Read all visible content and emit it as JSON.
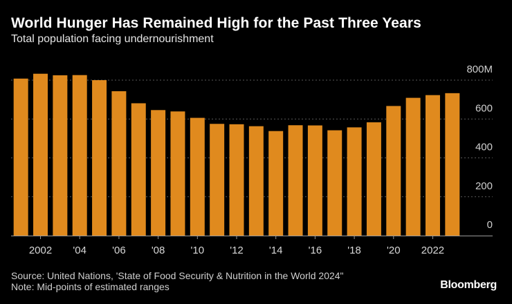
{
  "chart_data": {
    "type": "bar",
    "title": "World Hunger Has Remained High for the Past Three Years",
    "subtitle": "Total population facing undernourishment",
    "categories": [
      "2001",
      "2002",
      "2003",
      "2004",
      "2005",
      "2006",
      "2007",
      "2008",
      "2009",
      "2010",
      "2011",
      "2012",
      "2013",
      "2014",
      "2015",
      "2016",
      "2017",
      "2018",
      "2019",
      "2020",
      "2021",
      "2022",
      "2023"
    ],
    "values": [
      808,
      833,
      825,
      826,
      800,
      743,
      681,
      646,
      639,
      606,
      575,
      573,
      563,
      538,
      568,
      567,
      542,
      557,
      583,
      667,
      709,
      723,
      733
    ],
    "xlabel": "",
    "ylabel": "",
    "ylim": [
      0,
      800
    ],
    "yticks": [
      0,
      200,
      400,
      600,
      800
    ],
    "ytick_labels": [
      "0",
      "200",
      "400",
      "600",
      "800M"
    ],
    "xtick_labels": [
      {
        "category": "2002",
        "label": "2002"
      },
      {
        "category": "2004",
        "label": "'04"
      },
      {
        "category": "2006",
        "label": "'06"
      },
      {
        "category": "2008",
        "label": "'08"
      },
      {
        "category": "2010",
        "label": "'10"
      },
      {
        "category": "2012",
        "label": "'12"
      },
      {
        "category": "2014",
        "label": "'14"
      },
      {
        "category": "2016",
        "label": "'16"
      },
      {
        "category": "2018",
        "label": "'18"
      },
      {
        "category": "2020",
        "label": "'20"
      },
      {
        "category": "2022",
        "label": "2022"
      }
    ],
    "grid": true,
    "bar_color": "#e08a1e"
  },
  "footer": {
    "source": "Source: United Nations, 'State of Food Security & Nutrition in the World 2024\"",
    "note": "Note: Mid-points of estimated ranges"
  },
  "brand": "Bloomberg"
}
